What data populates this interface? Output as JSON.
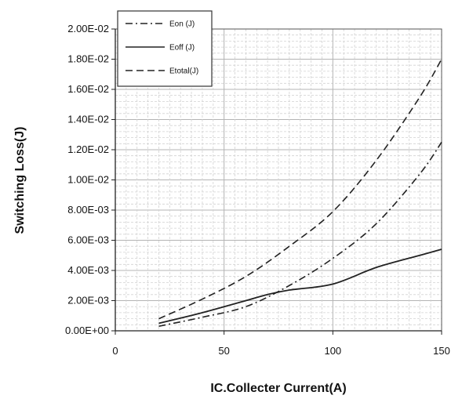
{
  "chart_data": {
    "type": "line",
    "xlabel": "IC.Collecter Current(A)",
    "ylabel": "Switching Loss(J)",
    "xlim": [
      0,
      150
    ],
    "ylim": [
      0,
      0.02
    ],
    "x_ticks": [
      "0",
      "50",
      "100",
      "150"
    ],
    "y_ticks": [
      "0.00E+00",
      "2.00E-03",
      "4.00E-03",
      "6.00E-03",
      "8.00E-03",
      "1.00E-02",
      "1.20E-02",
      "1.40E-02",
      "1.60E-02",
      "1.80E-02",
      "2.00E-02"
    ],
    "grid": true,
    "legend_position": "top-left",
    "series": [
      {
        "name": "Eon (J)",
        "line_style": "dash-dot",
        "color": "#222222",
        "x": [
          20,
          40,
          60,
          80,
          100,
          120,
          140,
          150
        ],
        "y": [
          0.0003,
          0.0009,
          0.0016,
          0.003,
          0.0048,
          0.0071,
          0.0104,
          0.0125
        ]
      },
      {
        "name": "Eoff (J)",
        "line_style": "solid",
        "color": "#222222",
        "x": [
          20,
          40,
          60,
          70,
          80,
          100,
          120,
          140,
          150
        ],
        "y": [
          0.0005,
          0.0012,
          0.002,
          0.0024,
          0.0027,
          0.0031,
          0.0042,
          0.005,
          0.0054
        ]
      },
      {
        "name": "Etotal(J)",
        "line_style": "dashed",
        "color": "#222222",
        "x": [
          20,
          40,
          60,
          80,
          100,
          120,
          140,
          150
        ],
        "y": [
          0.0008,
          0.0021,
          0.0036,
          0.0056,
          0.0079,
          0.0113,
          0.0155,
          0.018
        ]
      }
    ]
  }
}
